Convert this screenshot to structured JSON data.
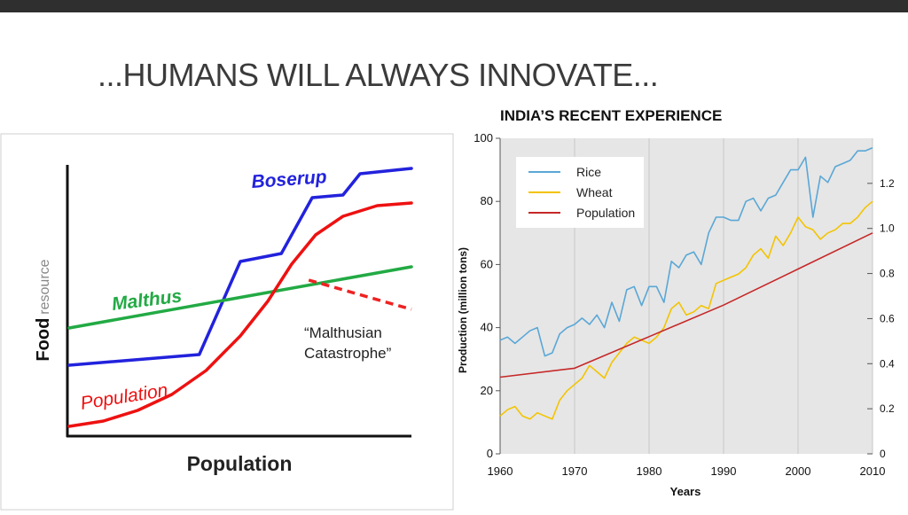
{
  "slide": {
    "title": "...HUMANS WILL ALWAYS INNOVATE...",
    "bar_color": "#2f2f2f"
  },
  "chart_data": [
    {
      "type": "line",
      "ylabel_bold": "Food",
      "ylabel_rest": "resource",
      "xlabel": "Population",
      "series": [
        {
          "name": "Boserup",
          "color": "#2222dd",
          "points": [
            [
              0,
              0.26
            ],
            [
              0.38,
              0.3
            ],
            [
              0.5,
              0.65
            ],
            [
              0.62,
              0.68
            ],
            [
              0.71,
              0.89
            ],
            [
              0.8,
              0.9
            ],
            [
              0.85,
              0.98
            ],
            [
              1.0,
              1.0
            ]
          ]
        },
        {
          "name": "Malthus",
          "color": "#22aa44",
          "points": [
            [
              0,
              0.4
            ],
            [
              1.0,
              0.63
            ]
          ]
        },
        {
          "name": "Population",
          "color": "#ee1111",
          "points": [
            [
              0,
              0.03
            ],
            [
              0.1,
              0.05
            ],
            [
              0.2,
              0.09
            ],
            [
              0.3,
              0.15
            ],
            [
              0.4,
              0.24
            ],
            [
              0.5,
              0.37
            ],
            [
              0.58,
              0.5
            ],
            [
              0.65,
              0.64
            ],
            [
              0.72,
              0.75
            ],
            [
              0.8,
              0.82
            ],
            [
              0.9,
              0.86
            ],
            [
              1.0,
              0.87
            ]
          ]
        }
      ],
      "annotation": {
        "lines": [
          "“Malthusian",
          "Catastrophe”"
        ],
        "dashed_segment": [
          [
            0.7,
            0.58
          ],
          [
            1.0,
            0.47
          ]
        ],
        "color": "#ee2222"
      }
    },
    {
      "type": "line",
      "title": "INDIA’S RECENT EXPERIENCE",
      "xlabel": "Years",
      "ylabel": "Production (million tons)",
      "xlim": [
        1960,
        2010
      ],
      "ylim": [
        0,
        100
      ],
      "y2lim": [
        0,
        1.4
      ],
      "xticks": [
        "1960",
        "1970",
        "1980",
        "1990",
        "2000",
        "2010"
      ],
      "yticks": [
        "0",
        "20",
        "40",
        "60",
        "80",
        "100"
      ],
      "y2ticks": [
        "0",
        "0.2",
        "0.4",
        "0.6",
        "0.8",
        "1.0",
        "1.2"
      ],
      "grid": "vertical",
      "legend": "top-left",
      "series": [
        {
          "name": "Rice",
          "color": "#5aa7d6",
          "axis": "left",
          "x": [
            1960,
            1961,
            1962,
            1963,
            1964,
            1965,
            1966,
            1967,
            1968,
            1969,
            1970,
            1971,
            1972,
            1973,
            1974,
            1975,
            1976,
            1977,
            1978,
            1979,
            1980,
            1981,
            1982,
            1983,
            1984,
            1985,
            1986,
            1987,
            1988,
            1989,
            1990,
            1991,
            1992,
            1993,
            1994,
            1995,
            1996,
            1997,
            1998,
            1999,
            2000,
            2001,
            2002,
            2003,
            2004,
            2005,
            2006,
            2007,
            2008,
            2009,
            2010
          ],
          "values": [
            36,
            37,
            35,
            37,
            39,
            40,
            31,
            32,
            38,
            40,
            41,
            43,
            41,
            44,
            40,
            48,
            42,
            52,
            53,
            47,
            53,
            53,
            48,
            61,
            59,
            63,
            64,
            60,
            70,
            75,
            75,
            74,
            74,
            80,
            81,
            77,
            81,
            82,
            86,
            90,
            90,
            94,
            75,
            88,
            86,
            91,
            92,
            93,
            96,
            96,
            97
          ]
        },
        {
          "name": "Wheat",
          "color": "#f3c400",
          "axis": "left",
          "x": [
            1960,
            1961,
            1962,
            1963,
            1964,
            1965,
            1966,
            1967,
            1968,
            1969,
            1970,
            1971,
            1972,
            1973,
            1974,
            1975,
            1976,
            1977,
            1978,
            1979,
            1980,
            1981,
            1982,
            1983,
            1984,
            1985,
            1986,
            1987,
            1988,
            1989,
            1990,
            1991,
            1992,
            1993,
            1994,
            1995,
            1996,
            1997,
            1998,
            1999,
            2000,
            2001,
            2002,
            2003,
            2004,
            2005,
            2006,
            2007,
            2008,
            2009,
            2010
          ],
          "values": [
            12,
            14,
            15,
            12,
            11,
            13,
            12,
            11,
            17,
            20,
            22,
            24,
            28,
            26,
            24,
            29,
            32,
            35,
            37,
            36,
            35,
            37,
            40,
            46,
            48,
            44,
            45,
            47,
            46,
            54,
            55,
            56,
            57,
            59,
            63,
            65,
            62,
            69,
            66,
            70,
            75,
            72,
            71,
            68,
            70,
            71,
            73,
            73,
            75,
            78,
            80
          ]
        },
        {
          "name": "Population",
          "color": "#c62828",
          "axis": "right",
          "x": [
            1960,
            1970,
            1980,
            1990,
            2000,
            2010
          ],
          "values": [
            0.34,
            0.38,
            0.52,
            0.66,
            0.82,
            0.98
          ]
        }
      ]
    }
  ]
}
